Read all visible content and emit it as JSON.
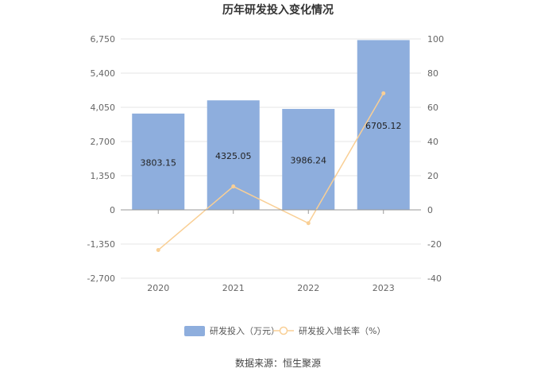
{
  "chart_data": {
    "type": "bar",
    "title": "历年研发投入变化情况",
    "categories": [
      "2020",
      "2021",
      "2022",
      "2023"
    ],
    "series": [
      {
        "name": "研发投入（万元）",
        "type": "bar",
        "axis": "left",
        "values": [
          3803.15,
          4325.05,
          3986.24,
          6705.12
        ],
        "labels": [
          "3803.15",
          "4325.05",
          "3986.24",
          "6705.12"
        ],
        "color": "#8eaedd"
      },
      {
        "name": "研发投入增长率（%）",
        "type": "line",
        "axis": "right",
        "values": [
          -23.5,
          13.7,
          -7.8,
          68.2
        ],
        "color": "#f9cf95"
      }
    ],
    "left_axis": {
      "ylim": [
        -2700,
        6750
      ],
      "ticks": [
        "-2,700",
        "-1,350",
        "0",
        "1,350",
        "2,700",
        "4,050",
        "5,400",
        "6,750"
      ],
      "tick_values": [
        -2700,
        -1350,
        0,
        1350,
        2700,
        4050,
        5400,
        6750
      ]
    },
    "right_axis": {
      "ylim": [
        -40,
        100
      ],
      "ticks": [
        "-40",
        "-20",
        "0",
        "20",
        "40",
        "60",
        "80",
        "100"
      ],
      "tick_values": [
        -40,
        -20,
        0,
        20,
        40,
        60,
        80,
        100
      ]
    },
    "grid": true,
    "legend_position": "bottom",
    "source": "数据来源：恒生聚源"
  }
}
